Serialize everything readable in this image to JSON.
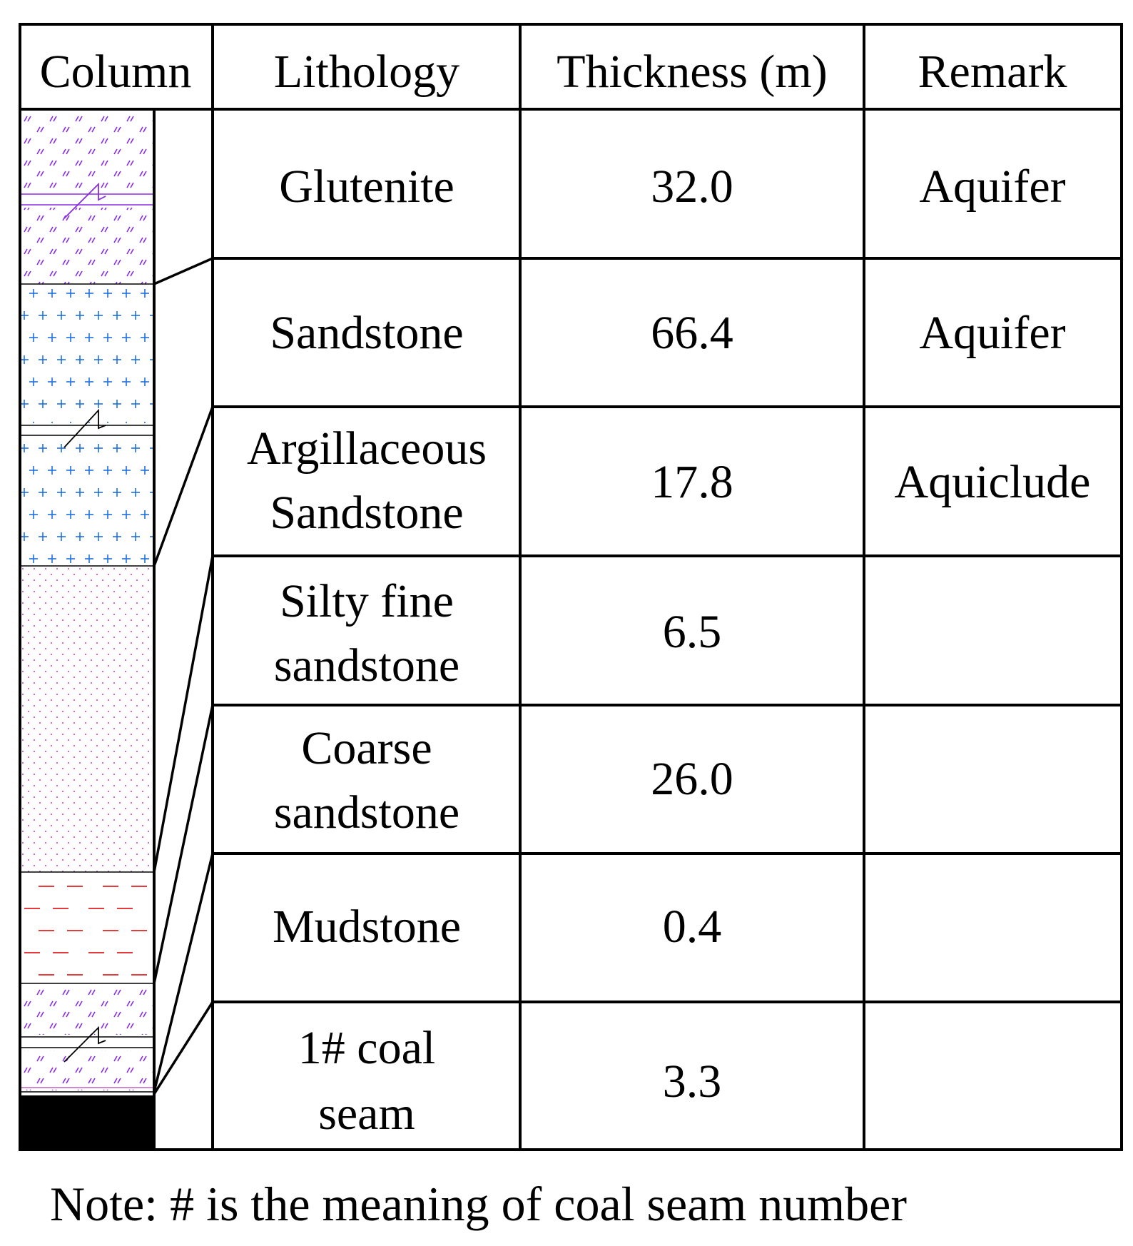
{
  "headers": {
    "column": "Column",
    "lithology": "Lithology",
    "thickness": "Thickness (m)",
    "remark": "Remark"
  },
  "rows": [
    {
      "lithology": [
        "Glutenite"
      ],
      "thickness": "32.0",
      "remark": "Aquifer",
      "pattern": "glutenite-hatch"
    },
    {
      "lithology": [
        "Sandstone"
      ],
      "thickness": "66.4",
      "remark": "Aquifer",
      "pattern": "sandstone-cross"
    },
    {
      "lithology": [
        "Argillaceous",
        "Sandstone"
      ],
      "thickness": "17.8",
      "remark": "Aquiclude",
      "pattern": "argillaceous-sandstone-cross"
    },
    {
      "lithology": [
        "Silty fine",
        "sandstone"
      ],
      "thickness": "6.5",
      "remark": "",
      "pattern": "silty-fine-sandstone-dots"
    },
    {
      "lithology": [
        "Coarse",
        "sandstone"
      ],
      "thickness": "26.0",
      "remark": "",
      "pattern": "coarse-sandstone-dots"
    },
    {
      "lithology": [
        "Mudstone"
      ],
      "thickness": "0.4",
      "remark": "",
      "pattern": "mudstone-dashes"
    },
    {
      "lithology": [
        "1# coal",
        "seam"
      ],
      "thickness": "3.3",
      "remark": "",
      "pattern": "coal-solid-black"
    }
  ],
  "note": "Note: # is the meaning of coal seam number",
  "colors": {
    "line": "#000000",
    "glutenite": "#8a2be2",
    "sandstone": "#1e6fe0",
    "fine_sand_dots": "#c060c0",
    "mudstone": "#e02020",
    "coal": "#000000"
  }
}
